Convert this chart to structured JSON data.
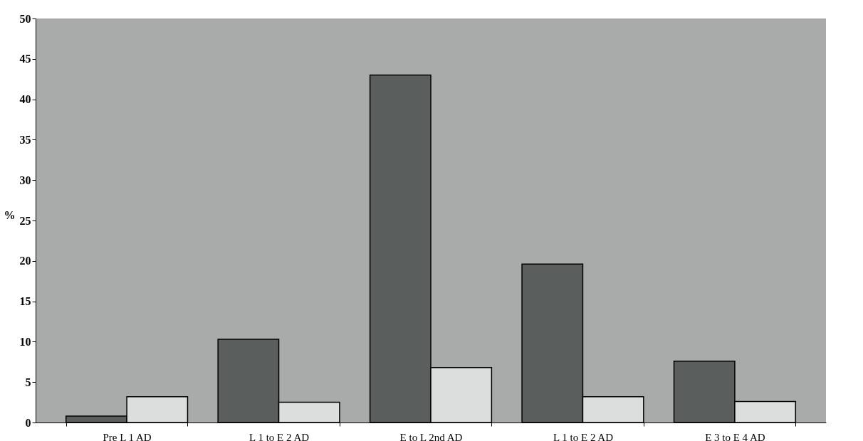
{
  "chart_data": {
    "type": "bar",
    "ylabel": "%",
    "categories": [
      "Pre L 1 AD",
      "L 1 to E 2 AD",
      "E to L 2nd AD",
      "L 1 to E 2 AD",
      "E 3 to E 4 AD"
    ],
    "series": [
      {
        "color": "#5a5e5c",
        "values": [
          0.8,
          10.3,
          43,
          19.6,
          7.6
        ]
      },
      {
        "color": "#dcdedd",
        "values": [
          3.2,
          2.5,
          6.8,
          3.2,
          2.6
        ]
      }
    ],
    "ylim": [
      0,
      50
    ],
    "yticks": [
      0,
      5,
      10,
      15,
      20,
      25,
      30,
      35,
      40,
      45,
      50
    ],
    "grid": false,
    "legend": false
  }
}
